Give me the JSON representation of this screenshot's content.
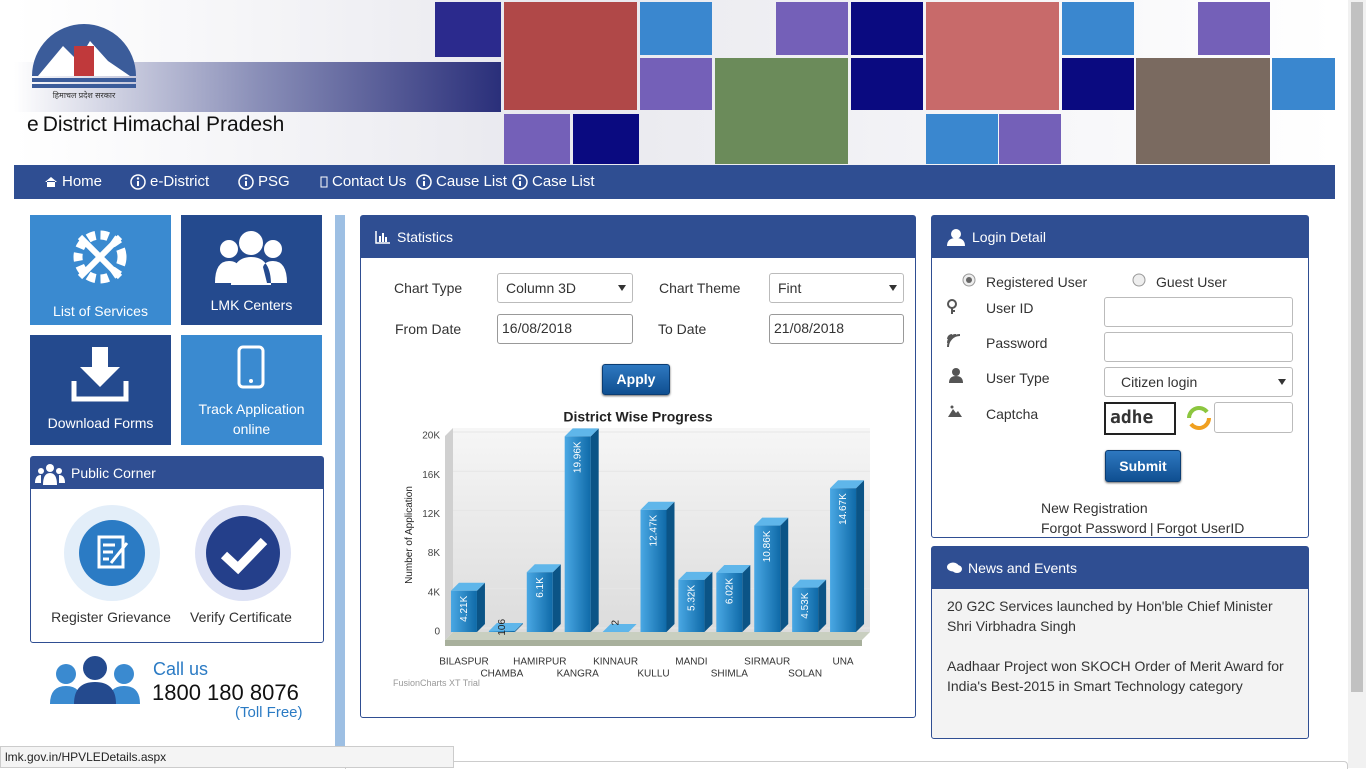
{
  "header": {
    "title_prefix": "e",
    "title": "District Himachal Pradesh",
    "logo_text": "हिमाचल प्रदेश सरकार"
  },
  "nav": [
    "Home",
    "e-District",
    "PSG",
    "Contact Us",
    "Cause List",
    "Case List"
  ],
  "tiles": [
    "List of Services",
    "LMK Centers",
    "Download Forms",
    "Track Application online"
  ],
  "public_corner": {
    "title": "Public Corner",
    "items": [
      "Register Grievance",
      "Verify Certificate"
    ]
  },
  "call": {
    "label": "Call us",
    "number": "1800 180 8076",
    "note": "(Toll Free)"
  },
  "statistics": {
    "title": "Statistics",
    "chart_type_label": "Chart Type",
    "chart_type": "Column 3D",
    "chart_theme_label": "Chart Theme",
    "chart_theme": "Fint",
    "from_label": "From Date",
    "from": "16/08/2018",
    "to_label": "To Date",
    "to": "21/08/2018",
    "apply": "Apply",
    "watermark": "FusionCharts XT Trial"
  },
  "chart_data": {
    "type": "bar",
    "title": "District Wise Progress",
    "y_label": "Number of Application",
    "categories": [
      "BILASPUR",
      "CHAMBA",
      "HAMIRPUR",
      "KANGRA",
      "KINNAUR",
      "KULLU",
      "MANDI",
      "SHIMLA",
      "SIRMAUR",
      "SOLAN",
      "UNA"
    ],
    "values": [
      4210,
      106,
      6100,
      19960,
      2,
      12470,
      5320,
      6020,
      10860,
      4530,
      14670
    ],
    "value_labels": [
      "4.21K",
      "106",
      "6.1K",
      "19.96K",
      "2",
      "12.47K",
      "5.32K",
      "6.02K",
      "10.86K",
      "4.53K",
      "14.67K"
    ],
    "color": "#1f87c8",
    "ylim": [
      0,
      20000
    ],
    "yticks": [
      0,
      {
        "value": 4000,
        "label": "4K"
      },
      {
        "value": 8000,
        "label": "8K"
      },
      {
        "value": 12000,
        "label": "12K"
      },
      {
        "value": 16000,
        "label": "16K"
      },
      {
        "value": 20000,
        "label": "20K"
      }
    ]
  },
  "login": {
    "title": "Login Detail",
    "registered": "Registered User",
    "guest": "Guest User",
    "user_id": "User ID",
    "password": "Password",
    "user_type": "User Type",
    "user_type_value": "Citizen login",
    "captcha": "Captcha",
    "captcha_text": "adhe",
    "submit": "Submit",
    "new_registration": "New Registration",
    "forgot_password": "Forgot Password",
    "separator": "|",
    "forgot_userid": "Forgot UserID"
  },
  "news": {
    "title": "News and Events",
    "items": [
      "20 G2C Services launched by Hon'ble Chief Minister Shri Virbhadra Singh",
      "Aadhaar Project won SKOCH Order of Merit Award for India's Best-2015 in Smart Technology category"
    ]
  },
  "status_bar": "lmk.gov.in/HPVLEDetails.aspx"
}
